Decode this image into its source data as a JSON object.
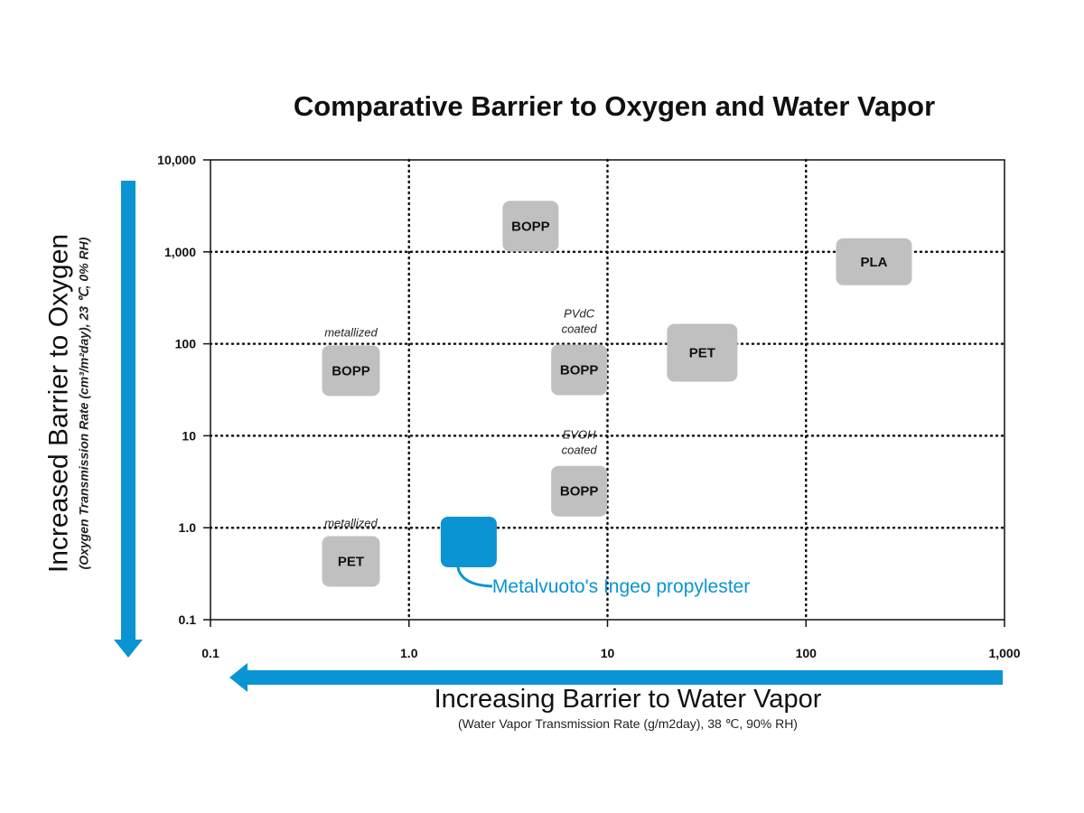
{
  "chart_data": {
    "type": "scatter",
    "title": "Comparative Barrier to Oxygen and Water Vapor",
    "xlabel": "Increasing Barrier to Water Vapor",
    "xlabel_sub": "(Water Vapor Transmission Rate (g/m2day), 38 ℃, 90% RH)",
    "ylabel": "Increased Barrier to Oxygen",
    "ylabel_sub": "(Oxygen Transmission Rate (cm³/m²day), 23 ℃, 0% RH)",
    "x_scale": "log",
    "y_scale": "log",
    "xlim": [
      0.1,
      1000
    ],
    "ylim": [
      0.1,
      10000
    ],
    "x_ticks": [
      0.1,
      1,
      10,
      100,
      1000
    ],
    "x_tick_labels": [
      "0.1",
      "1.0",
      "10",
      "100",
      "1,000"
    ],
    "y_ticks": [
      0.1,
      1,
      10,
      100,
      1000,
      10000
    ],
    "y_tick_labels": [
      "0.1",
      "1.0",
      "10",
      "100",
      "1,000",
      "10,000"
    ],
    "grid": "dotted",
    "accent_color": "#0a94d3",
    "box_color": "#c0c0c0",
    "points": [
      {
        "label": "BOPP",
        "note": "",
        "x": 4.1,
        "y": 1900
      },
      {
        "label": "PLA",
        "note": "",
        "x": 220,
        "y": 780
      },
      {
        "label": "PET",
        "note": "",
        "x": 30,
        "y": 80
      },
      {
        "label": "BOPP",
        "note": "metallized",
        "x": 0.51,
        "y": 51
      },
      {
        "label": "BOPP",
        "note": "PVdC coated",
        "x": 7.2,
        "y": 52
      },
      {
        "label": "BOPP",
        "note": "EVOH coated",
        "x": 7.2,
        "y": 2.5
      },
      {
        "label": "PET",
        "note": "metallized",
        "x": 0.51,
        "y": 0.43
      },
      {
        "label": "",
        "note": "Metalvuoto's Ingeo propylester",
        "x": 2.0,
        "y": 0.7,
        "highlight": true
      }
    ]
  }
}
